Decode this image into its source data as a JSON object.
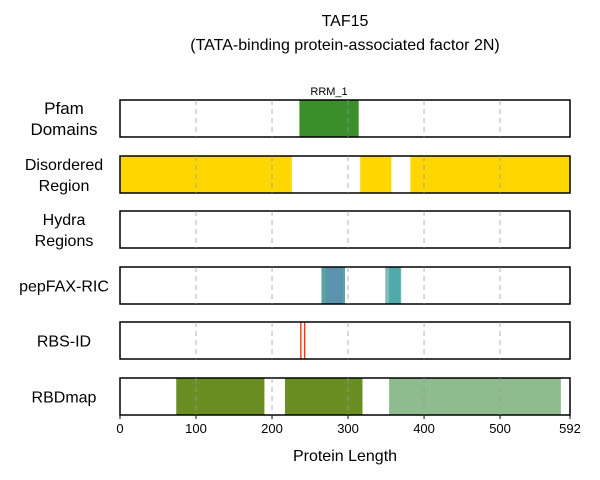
{
  "chart_data": {
    "type": "bar",
    "title": [
      "TAF15",
      "(TATA-binding protein-associated factor 2N)"
    ],
    "xlabel": "Protein Length",
    "xlim": [
      0,
      592
    ],
    "xticks": [
      0,
      100,
      200,
      300,
      400,
      500,
      592
    ],
    "grid": "vertical dashed",
    "tracks": [
      {
        "label": [
          "Pfam",
          "Domains"
        ],
        "segments": [
          {
            "start": 236,
            "end": 314,
            "color": "#3a8f2a",
            "opacity": 1,
            "label": "RRM_1"
          }
        ]
      },
      {
        "label": [
          "Disordered",
          "Region"
        ],
        "segments": [
          {
            "start": 0,
            "end": 226,
            "color": "#ffd700",
            "opacity": 1
          },
          {
            "start": 316,
            "end": 357,
            "color": "#ffd700",
            "opacity": 1
          },
          {
            "start": 382,
            "end": 592,
            "color": "#ffd700",
            "opacity": 1
          }
        ]
      },
      {
        "label": [
          "Hydra",
          "Regions"
        ],
        "segments": []
      },
      {
        "label": [
          "pepFAX-RIC"
        ],
        "segments": [
          {
            "start": 265,
            "end": 296,
            "color": "#2f8c8c",
            "opacity": 0.8
          },
          {
            "start": 271,
            "end": 293,
            "color": "#5b8fb0",
            "opacity": 0.8
          },
          {
            "start": 349,
            "end": 369,
            "color": "#2f8c8c",
            "opacity": 0.6
          },
          {
            "start": 354,
            "end": 370,
            "color": "#2f9fa0",
            "opacity": 0.6
          }
        ]
      },
      {
        "label": [
          "RBS-ID"
        ],
        "segments": [
          {
            "start": 237,
            "end": 238.8,
            "color": "#ff3300",
            "opacity": 1
          },
          {
            "start": 242,
            "end": 243.8,
            "color": "#ff3300",
            "opacity": 1
          }
        ]
      },
      {
        "label": [
          "RBDmap"
        ],
        "segments": [
          {
            "start": 74,
            "end": 190,
            "color": "#6b8e23",
            "opacity": 1
          },
          {
            "start": 217,
            "end": 319,
            "color": "#6b8e23",
            "opacity": 1
          },
          {
            "start": 354,
            "end": 580,
            "color": "#8fbc8f",
            "opacity": 1
          }
        ]
      }
    ]
  }
}
